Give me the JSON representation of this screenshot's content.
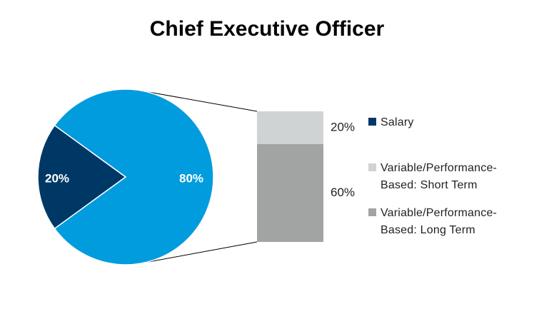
{
  "chart_data": {
    "type": "bar-of-pie",
    "title": "Chief Executive Officer",
    "pie": {
      "slices": [
        {
          "name": "Salary",
          "value": 20,
          "label": "20%",
          "color": "#003865"
        },
        {
          "name": "Variable/Performance-Based",
          "value": 80,
          "label": "80%",
          "color": "#009cde"
        }
      ]
    },
    "bar": {
      "segments": [
        {
          "name": "Variable/Performance-Based: Short Term",
          "value": 20,
          "label": "20%",
          "color": "#d0d3d4"
        },
        {
          "name": "Variable/Performance-Based: Long Term",
          "value": 60,
          "label": "60%",
          "color": "#a2a4a3"
        }
      ]
    },
    "legend": {
      "placement": "right",
      "items": [
        {
          "label": "Salary",
          "color": "#003865"
        },
        {
          "label": "Variable/Performance-Based: Short Term",
          "color": "#d0d3d4"
        },
        {
          "label": "Variable/Performance-Based: Long Term",
          "color": "#a2a4a3"
        }
      ]
    }
  }
}
